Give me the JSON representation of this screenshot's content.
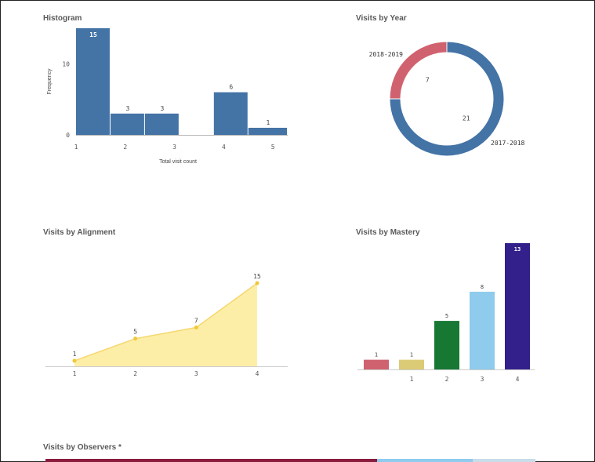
{
  "panels": {
    "histogram": {
      "title": "Histogram"
    },
    "year": {
      "title": "Visits by Year"
    },
    "alignment": {
      "title": "Visits by Alignment"
    },
    "mastery": {
      "title": "Visits by Mastery"
    },
    "observers": {
      "title": "Visits by Observers *"
    }
  },
  "chart_data": [
    {
      "id": "histogram",
      "type": "bar",
      "title": "Histogram",
      "xlabel": "Total visit count",
      "ylabel": "Frequency",
      "x_ticks": [
        1,
        2,
        3,
        4,
        5
      ],
      "y_ticks": [
        0,
        10
      ],
      "xlim": [
        1,
        5.3
      ],
      "ylim": [
        0,
        15
      ],
      "bins": [
        {
          "start": 1.0,
          "end": 1.7,
          "value": 15
        },
        {
          "start": 1.7,
          "end": 2.4,
          "value": 3
        },
        {
          "start": 2.4,
          "end": 3.1,
          "value": 3
        },
        {
          "start": 3.8,
          "end": 4.5,
          "value": 6
        },
        {
          "start": 4.5,
          "end": 5.3,
          "value": 1
        }
      ],
      "color": "#4473a6"
    },
    {
      "id": "year",
      "type": "pie",
      "title": "Visits by Year",
      "slices": [
        {
          "label": "2017-2018",
          "value": 21,
          "color": "#4473a6"
        },
        {
          "label": "2018-2019",
          "value": 7,
          "color": "#d0626f"
        }
      ]
    },
    {
      "id": "alignment",
      "type": "area",
      "title": "Visits by Alignment",
      "x": [
        1,
        2,
        3,
        4
      ],
      "values": [
        1,
        5,
        7,
        15
      ],
      "ylim": [
        0,
        15
      ],
      "fill": "#fdeea7",
      "line": "#f5d76e",
      "point": "#f2c736"
    },
    {
      "id": "mastery",
      "type": "bar",
      "title": "Visits by Mastery",
      "categories": [
        "",
        "1",
        "2",
        "3",
        "4"
      ],
      "values": [
        1,
        1,
        5,
        8,
        13
      ],
      "colors": [
        "#d0626f",
        "#dccb76",
        "#177834",
        "#8fcbec",
        "#33208a"
      ],
      "ylim": [
        0,
        13
      ]
    }
  ],
  "observers_colors": [
    "#8a1c3e",
    "#8fcbec",
    "#c8dcea"
  ]
}
